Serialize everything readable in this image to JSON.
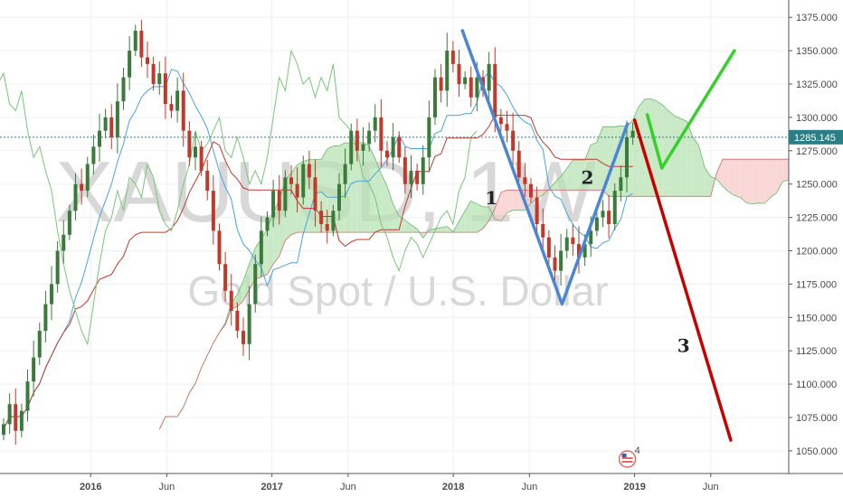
{
  "chart_data": {
    "type": "candlestick",
    "watermark": {
      "symbol": "XAUUSD, 1W",
      "description": "Gold Spot / U.S. Dollar"
    },
    "y_axis": {
      "ticks": [
        "1375.000",
        "1350.000",
        "1325.000",
        "1300.000",
        "1275.000",
        "1250.000",
        "1225.000",
        "1200.000",
        "1175.000",
        "1150.000",
        "1125.000",
        "1100.000",
        "1075.000",
        "1050.000"
      ],
      "range": [
        1033,
        1388
      ]
    },
    "x_axis": {
      "labels": [
        {
          "text": "2016",
          "pos": 0.0,
          "bold": true
        },
        {
          "text": "Jun",
          "pos": 0.42,
          "bold": false
        },
        {
          "text": "2017",
          "pos": 1.0,
          "bold": true
        },
        {
          "text": "Jun",
          "pos": 1.42,
          "bold": false
        },
        {
          "text": "2018",
          "pos": 2.0,
          "bold": true
        },
        {
          "text": "Jun",
          "pos": 2.42,
          "bold": false
        },
        {
          "text": "2019",
          "pos": 3.0,
          "bold": true
        },
        {
          "text": "Jun",
          "pos": 3.42,
          "bold": false
        }
      ],
      "range": [
        -0.5,
        3.85
      ]
    },
    "last_price": {
      "label": "1285.145",
      "value": 1285.145,
      "color": "#2a7f86"
    },
    "candles_close": [
      1070,
      1085,
      1065,
      1080,
      1102,
      1120,
      1140,
      1160,
      1175,
      1200,
      1212,
      1230,
      1250,
      1245,
      1265,
      1278,
      1290,
      1300,
      1285,
      1312,
      1330,
      1350,
      1365,
      1345,
      1340,
      1325,
      1333,
      1310,
      1305,
      1320,
      1290,
      1270,
      1278,
      1260,
      1245,
      1215,
      1190,
      1170,
      1155,
      1140,
      1130,
      1160,
      1190,
      1215,
      1225,
      1245,
      1230,
      1255,
      1250,
      1240,
      1265,
      1255,
      1230,
      1220,
      1215,
      1230,
      1250,
      1265,
      1290,
      1275,
      1280,
      1290,
      1300,
      1275,
      1270,
      1285,
      1270,
      1250,
      1260,
      1250,
      1270,
      1300,
      1330,
      1320,
      1350,
      1340,
      1325,
      1330,
      1315,
      1330,
      1320,
      1340,
      1300,
      1295,
      1290,
      1275,
      1255,
      1250,
      1240,
      1220,
      1210,
      1195,
      1185,
      1200,
      1210,
      1205,
      1195,
      1205,
      1215,
      1225,
      1230,
      1220,
      1245,
      1255,
      1285,
      1290
    ],
    "candle_colors": {
      "up": "#3b7a3b",
      "down": "#c0392b"
    },
    "projection_lines": [
      {
        "label": "1",
        "color": "#4a86d4",
        "points": [
          [
            2.05,
            1365
          ],
          [
            2.6,
            1160
          ],
          [
            2.96,
            1295
          ]
        ]
      },
      {
        "label": "2",
        "color": "#37d02b",
        "points": [
          [
            3.07,
            1302
          ],
          [
            3.15,
            1262
          ],
          [
            3.55,
            1350
          ]
        ]
      },
      {
        "label": "3",
        "color": "#c80000",
        "points": [
          [
            3.0,
            1298
          ],
          [
            3.53,
            1058
          ]
        ]
      }
    ],
    "wave_labels": [
      {
        "text": "1",
        "x": 2.21,
        "y": 1235
      },
      {
        "text": "2",
        "x": 2.74,
        "y": 1250
      },
      {
        "text": "3",
        "x": 3.27,
        "y": 1124
      }
    ],
    "grid": true,
    "colors": {
      "grid": "#eef0f3",
      "cloud_bear": "#f8c9c9",
      "cloud_bull": "#b8e3b4",
      "tenkan": "#4aa3df",
      "kijun": "#c0392b",
      "chikou": "#7ac47a",
      "axis": "#555555",
      "event_marker": "#e06a5f"
    },
    "event_marker": {
      "x": 2.96,
      "count": "4"
    }
  }
}
